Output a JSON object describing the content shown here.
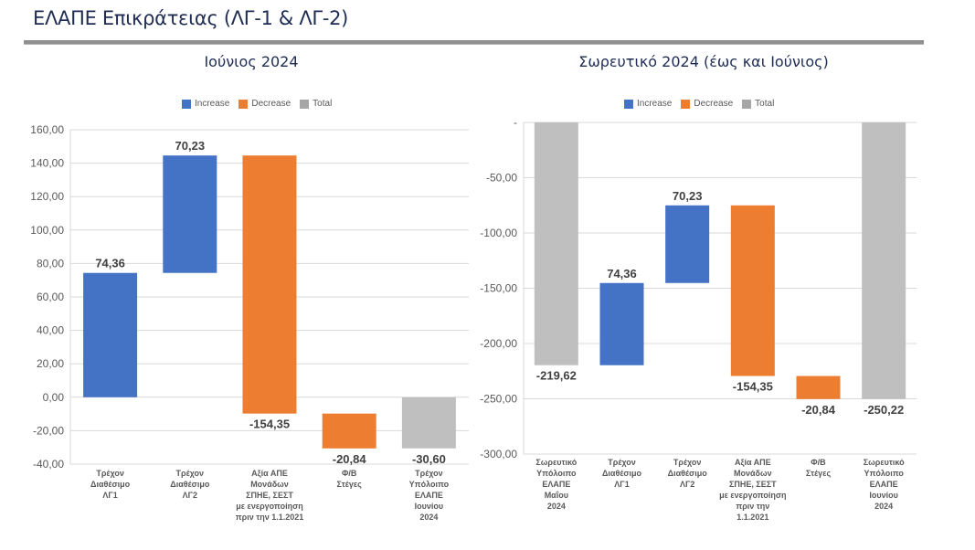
{
  "page": {
    "title": "ΕΛΑΠΕ Επικράτειας (ΛΓ-1 & ΛΓ-2)"
  },
  "legend": {
    "increase": "Increase",
    "decrease": "Decrease",
    "total": "Total"
  },
  "colors": {
    "increase": "#4472c4",
    "decrease": "#ed7d31",
    "total": "#bfbfbf",
    "title": "#1f2d55",
    "gridline": "#d9d9d9",
    "axis_text": "#595959",
    "label_text": "#404040"
  },
  "chart_data": [
    {
      "type": "bar",
      "subtype": "waterfall",
      "title": "Ιούνιος 2024",
      "categories": [
        [
          "Τρέχον",
          "Διαθέσιμο",
          "ΛΓ1"
        ],
        [
          "Τρέχον",
          "Διαθέσιμο",
          "ΛΓ2"
        ],
        [
          "Αξία ΑΠΕ",
          "Μονάδων",
          "ΣΠΗΕ, ΣΕΣΤ",
          "με ενεργοποίηση",
          "πριν την 1.1.2021"
        ],
        [
          "Φ/Β",
          "Στέγες"
        ],
        [
          "Τρέχον",
          "Υπόλοιπο",
          "ΕΛΑΠΕ",
          "Ιουνίου",
          "2024"
        ]
      ],
      "values": [
        74.36,
        70.23,
        -154.35,
        -20.84,
        -30.6
      ],
      "kinds": [
        "increase",
        "increase",
        "decrease",
        "decrease",
        "total"
      ],
      "data_labels": [
        "74,36",
        "70,23",
        "-154,35",
        "-20,84",
        "-30,60"
      ],
      "ylim": [
        -40,
        160
      ],
      "yticks": [
        160,
        140,
        120,
        100,
        80,
        60,
        40,
        20,
        0,
        -20,
        -40
      ],
      "ytick_labels": [
        "160,00",
        "140,00",
        "120,00",
        "100,00",
        "80,00",
        "60,00",
        "40,00",
        "20,00",
        "0,00",
        "-20,00",
        "-40,00"
      ],
      "grid": true,
      "legend": [
        "Increase",
        "Decrease",
        "Total"
      ],
      "legend_position": "top",
      "xlabel": "",
      "ylabel": ""
    },
    {
      "type": "bar",
      "subtype": "waterfall",
      "title": "Σωρευτικό 2024 (έως και Ιούνιος)",
      "categories": [
        [
          "Σωρευτικό",
          "Υπόλοιπο",
          "ΕΛΑΠΕ",
          "Μαΐου",
          "2024"
        ],
        [
          "Τρέχον",
          "Διαθέσιμο",
          "ΛΓ1"
        ],
        [
          "Τρέχον",
          "Διαθέσιμο",
          "ΛΓ2"
        ],
        [
          "Αξία ΑΠΕ",
          "Μονάδων",
          "ΣΠΗΕ, ΣΕΣΤ",
          "με ενεργοποίηση",
          "πριν την",
          "1.1.2021"
        ],
        [
          "Φ/Β",
          "Στέγες"
        ],
        [
          "Σωρευτικό",
          "Υπόλοιπο",
          "ΕΛΑΠΕ",
          "Ιουνίου",
          "2024"
        ]
      ],
      "values": [
        -219.62,
        74.36,
        70.23,
        -154.35,
        -20.84,
        -250.22
      ],
      "kinds": [
        "total",
        "increase",
        "increase",
        "decrease",
        "decrease",
        "total"
      ],
      "data_labels": [
        "-219,62",
        "74,36",
        "70,23",
        "-154,35",
        "-20,84",
        "-250,22"
      ],
      "ylim": [
        -300,
        0
      ],
      "yticks": [
        0,
        -50,
        -100,
        -150,
        -200,
        -250,
        -300
      ],
      "ytick_labels": [
        "-",
        "-50,00",
        "-100,00",
        "-150,00",
        "-200,00",
        "-250,00",
        "-300,00"
      ],
      "grid": true,
      "legend": [
        "Increase",
        "Decrease",
        "Total"
      ],
      "legend_position": "top",
      "xlabel": "",
      "ylabel": ""
    }
  ]
}
